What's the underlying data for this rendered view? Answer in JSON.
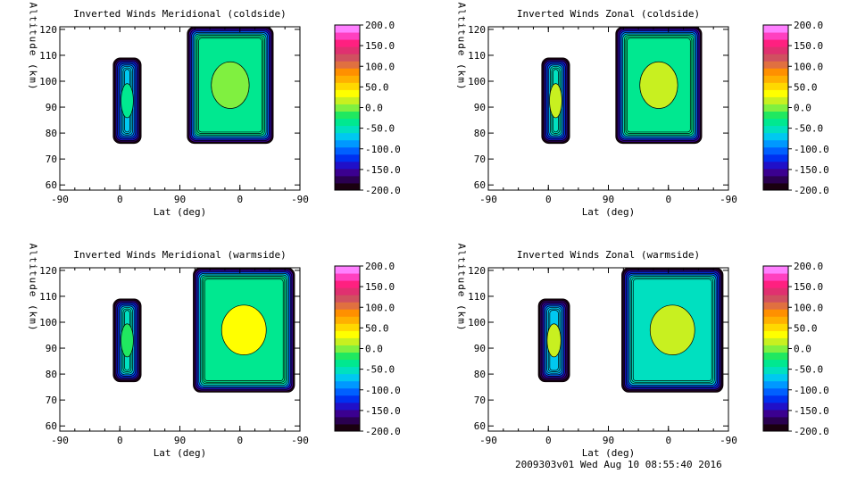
{
  "footer": {
    "run_stamp": "2009303v01 Wed Aug 10 08:55:40 2016"
  },
  "palette": {
    "ramp": [
      "#1a0010",
      "#2a0050",
      "#3b0090",
      "#2010c8",
      "#0030f0",
      "#0060ff",
      "#0098ff",
      "#00c8f0",
      "#00e0c0",
      "#00e890",
      "#20e860",
      "#80f040",
      "#c8f020",
      "#ffff00",
      "#ffd800",
      "#ffb000",
      "#ff9000",
      "#e07040",
      "#d05060",
      "#e03070",
      "#ff2080",
      "#ff40c0",
      "#ff80ff"
    ],
    "contour": "#000000"
  },
  "chart_data": [
    {
      "type": "heatmap",
      "title": "Inverted Winds Meridional (coldside)",
      "xlabel": "Lat (deg)",
      "ylabel": "Altitude (km)",
      "xticks": [
        "-90",
        "0",
        "90",
        "0",
        "-90"
      ],
      "yticks": [
        "60",
        "70",
        "80",
        "90",
        "100",
        "110",
        "120"
      ],
      "ylim": [
        58,
        121
      ],
      "colorbar": {
        "ticks": [
          "200.0",
          "150.0",
          "100.0",
          "50.0",
          "0.0",
          "-50.0",
          "-100.0",
          "-150.0",
          "-200.0"
        ],
        "range": [
          -200,
          200
        ]
      },
      "regions": [
        {
          "lat": [
            -10,
            32
          ],
          "alt": [
            76,
            109
          ],
          "value": -70,
          "center": -30
        },
        {
          "lat": [
            101,
            230
          ],
          "alt": [
            76,
            121
          ],
          "value": -40,
          "center": 5
        }
      ]
    },
    {
      "type": "heatmap",
      "title": "Inverted Winds Zonal (coldside)",
      "xlabel": "Lat (deg)",
      "ylabel": "Altitude (km)",
      "xticks": [
        "-90",
        "0",
        "90",
        "0",
        "-90"
      ],
      "yticks": [
        "60",
        "70",
        "80",
        "90",
        "100",
        "110",
        "120"
      ],
      "ylim": [
        58,
        121
      ],
      "colorbar": {
        "ticks": [
          "200.0",
          "150.0",
          "100.0",
          "50.0",
          "0.0",
          "-50.0",
          "-100.0",
          "-150.0",
          "-200.0"
        ],
        "range": [
          -200,
          200
        ]
      },
      "regions": [
        {
          "lat": [
            -10,
            32
          ],
          "alt": [
            76,
            109
          ],
          "value": -60,
          "center": 20
        },
        {
          "lat": [
            101,
            230
          ],
          "alt": [
            76,
            121
          ],
          "value": -35,
          "center": 25
        }
      ]
    },
    {
      "type": "heatmap",
      "title": "Inverted Winds Meridional (warmside)",
      "xlabel": "Lat (deg)",
      "ylabel": "Altitude (km)",
      "xticks": [
        "-90",
        "0",
        "90",
        "0",
        "-90"
      ],
      "yticks": [
        "60",
        "70",
        "80",
        "90",
        "100",
        "110",
        "120"
      ],
      "ylim": [
        58,
        121
      ],
      "colorbar": {
        "ticks": [
          "200.0",
          "150.0",
          "100.0",
          "50.0",
          "0.0",
          "-50.0",
          "-100.0",
          "-150.0",
          "-200.0"
        ],
        "range": [
          -200,
          200
        ]
      },
      "regions": [
        {
          "lat": [
            -10,
            32
          ],
          "alt": [
            77,
            109
          ],
          "value": -60,
          "center": -10
        },
        {
          "lat": [
            110,
            262
          ],
          "alt": [
            73,
            121
          ],
          "value": -30,
          "center": 40
        }
      ]
    },
    {
      "type": "heatmap",
      "title": "Inverted Winds Zonal (warmside)",
      "xlabel": "Lat (deg)",
      "ylabel": "Altitude (km)",
      "xticks": [
        "-90",
        "0",
        "90",
        "0",
        "-90"
      ],
      "yticks": [
        "60",
        "70",
        "80",
        "90",
        "100",
        "110",
        "120"
      ],
      "ylim": [
        58,
        121
      ],
      "colorbar": {
        "ticks": [
          "200.0",
          "150.0",
          "100.0",
          "50.0",
          "0.0",
          "-50.0",
          "-100.0",
          "-150.0",
          "-200.0"
        ],
        "range": [
          -200,
          200
        ]
      },
      "regions": [
        {
          "lat": [
            -15,
            32
          ],
          "alt": [
            77,
            109
          ],
          "value": -80,
          "center": 20
        },
        {
          "lat": [
            110,
            262
          ],
          "alt": [
            73,
            121
          ],
          "value": -60,
          "center": 15
        }
      ]
    }
  ]
}
